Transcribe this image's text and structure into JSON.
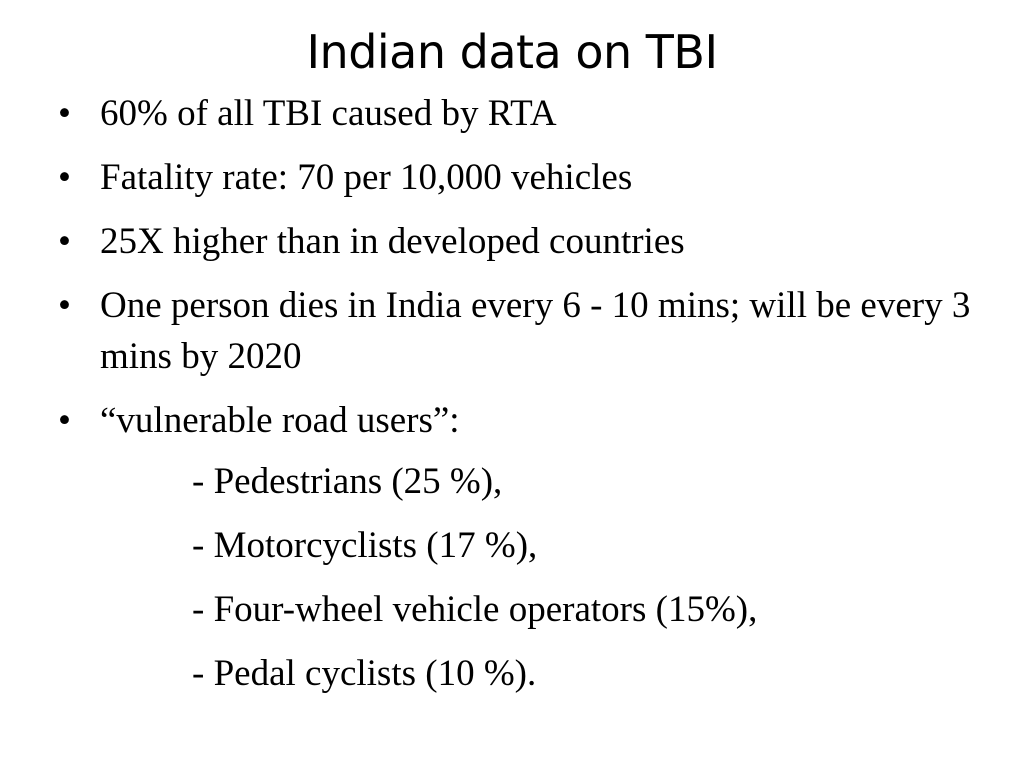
{
  "slide": {
    "title": "Indian data on TBI",
    "bullet_symbol": "•",
    "bullets": [
      "60% of all TBI caused by RTA",
      "Fatality rate: 70 per 10,000 vehicles",
      "25X  higher than in developed countries",
      "One person dies in India every 6 - 10 mins; will be every 3 mins by 2020",
      "“vulnerable road users”:"
    ],
    "sub_items": [
      "- Pedestrians (25 %),",
      "- Motorcyclists (17 %),",
      "- Four-wheel vehicle operators (15%),",
      "- Pedal cyclists (10 %)."
    ]
  }
}
